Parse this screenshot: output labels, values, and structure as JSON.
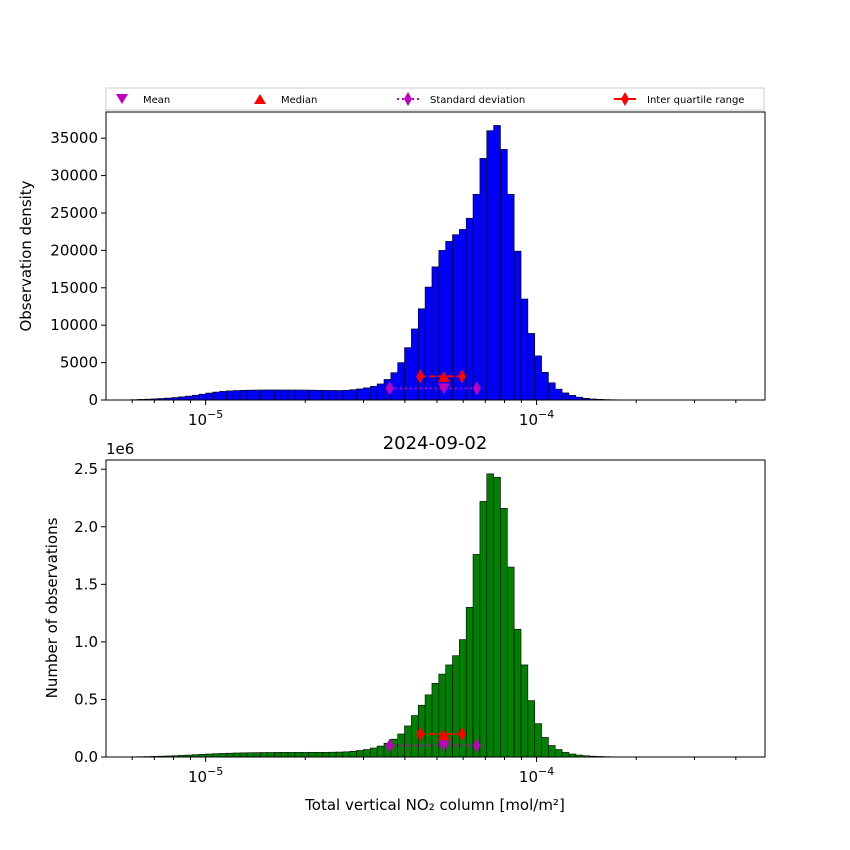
{
  "chart_data": [
    {
      "type": "bar",
      "title": "",
      "xscale": "log",
      "xlim": [
        5e-06,
        0.00049
      ],
      "ylim": [
        0,
        38500
      ],
      "xlabel": "",
      "ylabel": "Observation density",
      "multiplier": "",
      "bar_color": "#0000ff",
      "yticks": [
        0,
        5000,
        10000,
        15000,
        20000,
        25000,
        30000,
        35000
      ],
      "ytick_labels": [
        "0",
        "5000",
        "10000",
        "15000",
        "20000",
        "25000",
        "30000",
        "35000"
      ],
      "xtick_labels": [
        {
          "base": "10",
          "exp": "−5",
          "value": 1e-05
        },
        {
          "base": "10",
          "exp": "−4",
          "value": 0.0001
        }
      ],
      "bins": {
        "start": 5.93e-06,
        "log_width": 0.0207,
        "count": 95
      },
      "values": [
        50,
        80,
        110,
        150,
        200,
        260,
        330,
        420,
        520,
        640,
        780,
        930,
        1060,
        1150,
        1220,
        1270,
        1300,
        1320,
        1330,
        1340,
        1345,
        1345,
        1340,
        1340,
        1335,
        1330,
        1320,
        1300,
        1290,
        1280,
        1270,
        1300,
        1380,
        1480,
        1620,
        1820,
        2150,
        2750,
        3650,
        5000,
        7000,
        9500,
        12200,
        15100,
        17800,
        20000,
        21200,
        22100,
        22800,
        24300,
        27500,
        32300,
        36000,
        36700,
        33500,
        27500,
        19900,
        13500,
        8900,
        5900,
        3700,
        2300,
        1450,
        950,
        620,
        380,
        230,
        140,
        90,
        60,
        40,
        28,
        20,
        15,
        11,
        8,
        6,
        5,
        4,
        3,
        2,
        2,
        1,
        1,
        1,
        0,
        0,
        0,
        0,
        0,
        0,
        0,
        0,
        0,
        0
      ],
      "markers": {
        "mean": {
          "x": 5.25e-05,
          "y": 1550
        },
        "median": {
          "x": 5.25e-05,
          "y": 3050
        },
        "std": {
          "xmin": 3.6e-05,
          "xmax": 6.6e-05,
          "y": 1550
        },
        "iqr": {
          "xmin": 4.45e-05,
          "xmax": 5.95e-05,
          "y": 3150
        }
      }
    },
    {
      "type": "bar",
      "title": "2024-09-02",
      "xscale": "log",
      "xlim": [
        5e-06,
        0.00049
      ],
      "ylim": [
        0,
        2.58
      ],
      "xlabel": "Total vertical NO₂ column [mol/m²]",
      "ylabel": "Number of observations",
      "multiplier": "1e6",
      "bar_color": "#008000",
      "yticks": [
        0,
        0.5,
        1.0,
        1.5,
        2.0,
        2.5
      ],
      "ytick_labels": [
        "0.0",
        "0.5",
        "1.0",
        "1.5",
        "2.0",
        "2.5"
      ],
      "xtick_labels": [
        {
          "base": "10",
          "exp": "−5",
          "value": 1e-05
        },
        {
          "base": "10",
          "exp": "−4",
          "value": 0.0001
        }
      ],
      "bins": {
        "start": 5.93e-06,
        "log_width": 0.0207,
        "count": 95
      },
      "values": [
        0.002,
        0.003,
        0.004,
        0.005,
        0.007,
        0.009,
        0.011,
        0.014,
        0.017,
        0.02,
        0.023,
        0.026,
        0.029,
        0.031,
        0.033,
        0.035,
        0.036,
        0.037,
        0.038,
        0.039,
        0.039,
        0.04,
        0.04,
        0.04,
        0.04,
        0.04,
        0.041,
        0.041,
        0.041,
        0.042,
        0.043,
        0.045,
        0.05,
        0.057,
        0.065,
        0.078,
        0.095,
        0.12,
        0.155,
        0.2,
        0.27,
        0.36,
        0.45,
        0.54,
        0.64,
        0.72,
        0.8,
        0.88,
        1.02,
        1.3,
        1.76,
        2.22,
        2.46,
        2.43,
        2.16,
        1.65,
        1.11,
        0.8,
        0.49,
        0.29,
        0.17,
        0.1,
        0.065,
        0.04,
        0.026,
        0.017,
        0.011,
        0.007,
        0.005,
        0.003,
        0.002,
        0.0015,
        0.001,
        0.0008,
        0.0006,
        0.0004,
        0.0003,
        0.0002,
        0.0001,
        0,
        0,
        0,
        0,
        0,
        0,
        0,
        0,
        0,
        0,
        0,
        0,
        0,
        0,
        0,
        0
      ],
      "markers": {
        "mean": {
          "x": 5.25e-05,
          "y": 0.1
        },
        "median": {
          "x": 5.25e-05,
          "y": 0.19
        },
        "std": {
          "xmin": 3.6e-05,
          "xmax": 6.6e-05,
          "y": 0.1
        },
        "iqr": {
          "xmin": 4.45e-05,
          "xmax": 5.95e-05,
          "y": 0.2
        }
      }
    }
  ],
  "legend": {
    "mean_label": "Mean",
    "median_label": "Median",
    "std_label": "Standard deviation",
    "iqr_label": "Inter quartile range",
    "mean_color": "#c000c0",
    "median_color": "#ff0000",
    "std_color": "#c000c0",
    "iqr_color": "#ff0000"
  }
}
